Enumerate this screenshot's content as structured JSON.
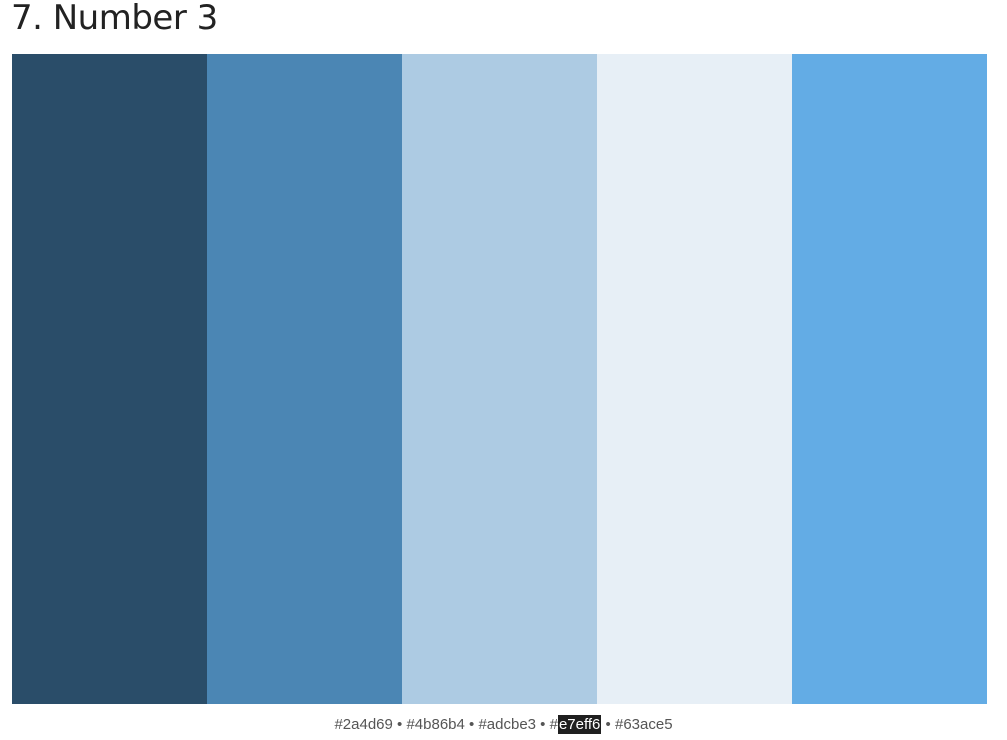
{
  "page": {
    "title": "7. Number 3"
  },
  "palette": {
    "colors": [
      {
        "hex": "#2a4d69",
        "label": "#2a4d69"
      },
      {
        "hex": "#4b86b4",
        "label": "#4b86b4"
      },
      {
        "hex": "#adcbe3",
        "label": "#adcbe3"
      },
      {
        "hex": "#e7eff6",
        "label": "#e7eff6",
        "label_prefix": "#",
        "label_selected": "e7eff6"
      },
      {
        "hex": "#63ace5",
        "label": "#63ace5"
      }
    ],
    "separator": " • ",
    "selection_colors": {
      "background": "#1f1f1f",
      "text": "#ffffff"
    }
  }
}
